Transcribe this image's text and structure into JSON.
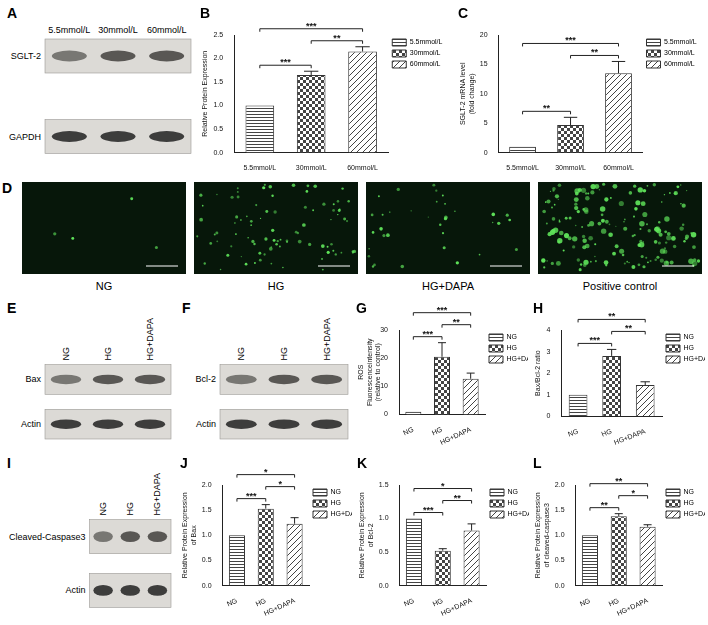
{
  "blots": [
    {
      "panel": "A",
      "lanes": [
        "5.5mmol/L",
        "30mmol/L",
        "60mmol/L"
      ],
      "bands": [
        "SGLT-2",
        "GAPDH"
      ]
    },
    {
      "panel": "E",
      "lanes": [
        "NG",
        "HG",
        "HG+DAPA"
      ],
      "bands": [
        "Bax",
        "Actin"
      ]
    },
    {
      "panel": "F",
      "lanes": [
        "NG",
        "HG",
        "HG+DAPA"
      ],
      "bands": [
        "Bcl-2",
        "Actin"
      ]
    },
    {
      "panel": "I",
      "lanes": [
        "NG",
        "HG",
        "HG+DAPA"
      ],
      "bands": [
        "Cleaved-Caspase3",
        "Actin"
      ]
    }
  ],
  "images": {
    "panel": "D",
    "labels": [
      "NG",
      "HG",
      "HG+DAPA",
      "Positive control"
    ]
  },
  "chart_data": [
    {
      "panel": "B",
      "type": "bar",
      "categories": [
        "5.5mmol/L",
        "30mmol/L",
        "60mmol/L"
      ],
      "values": [
        1,
        1.65,
        2.15
      ],
      "errors": [
        null,
        0.08,
        0.1
      ],
      "y_label": [
        "Relative Protein Expression"
      ],
      "ylim": [
        0,
        2.5
      ],
      "yticks": [
        {
          "value": 0,
          "label": "0.0"
        },
        {
          "value": 0.5,
          "label": "0.5"
        },
        {
          "value": 1,
          "label": "1.0"
        },
        {
          "value": 1.5,
          "label": "1.5"
        },
        {
          "value": 2,
          "label": "2.0"
        },
        {
          "value": 2.5,
          "label": "2.5"
        }
      ],
      "grid": false,
      "legend": "right",
      "significance": [
        {
          "from": 0,
          "to": 1,
          "label": "***"
        },
        {
          "from": 0,
          "to": 2,
          "label": "***"
        },
        {
          "from": 1,
          "to": 2,
          "label": "**"
        }
      ]
    },
    {
      "panel": "C",
      "type": "bar",
      "categories": [
        "5.5mmol/L",
        "30mmol/L",
        "60mmol/L"
      ],
      "values": [
        1,
        4.7,
        13.5
      ],
      "errors": [
        null,
        1.3,
        2
      ],
      "y_label": [
        "SGLT-2 mRNA level",
        "(fold change)"
      ],
      "ylim": [
        0,
        20
      ],
      "yticks": [
        0,
        5,
        10,
        15,
        20
      ],
      "grid": false,
      "legend": "right",
      "significance": [
        {
          "from": 0,
          "to": 1,
          "label": "**"
        },
        {
          "from": 0,
          "to": 2,
          "label": "***"
        },
        {
          "from": 1,
          "to": 2,
          "label": "**"
        }
      ]
    },
    {
      "panel": "G",
      "type": "bar",
      "categories": [
        "NG",
        "HG",
        "HG+DAPA"
      ],
      "values": [
        1,
        20.5,
        12.7
      ],
      "errors": [
        null,
        5,
        2
      ],
      "y_label": [
        "ROS",
        "Fluorescenceintensity",
        "(relative to control)"
      ],
      "ylim": [
        0,
        30
      ],
      "yticks": [
        0,
        10,
        20,
        30
      ],
      "grid": false,
      "legend": "right",
      "significance": [
        {
          "from": 0,
          "to": 2,
          "label": "***"
        },
        {
          "from": 0,
          "to": 1,
          "label": "***"
        },
        {
          "from": 1,
          "to": 2,
          "label": "**"
        }
      ]
    },
    {
      "panel": "H",
      "type": "bar",
      "categories": [
        "NG",
        "HG",
        "HG+DAPA"
      ],
      "values": [
        1,
        2.8,
        1.45
      ],
      "errors": [
        null,
        0.3,
        0.15
      ],
      "y_label": [
        "Bax/Bcl-2 ratio"
      ],
      "ylim": [
        0,
        4
      ],
      "yticks": [
        0,
        1,
        2,
        3,
        4
      ],
      "grid": false,
      "legend": "right",
      "significance": [
        {
          "from": 0,
          "to": 2,
          "label": "**"
        },
        {
          "from": 0,
          "to": 1,
          "label": "***"
        },
        {
          "from": 1,
          "to": 2,
          "label": "**"
        }
      ]
    },
    {
      "panel": "J",
      "type": "bar",
      "categories": [
        "NG",
        "HG",
        "HG+DAPA"
      ],
      "values": [
        1,
        1.53,
        1.23
      ],
      "errors": [
        null,
        0.08,
        0.12
      ],
      "y_label": [
        "Relative Protein Expression",
        "of Bax"
      ],
      "ylim": [
        0,
        2
      ],
      "yticks": [
        {
          "value": 0,
          "label": "0.0"
        },
        {
          "value": 0.5,
          "label": "0.5"
        },
        {
          "value": 1,
          "label": "1.0"
        },
        {
          "value": 1.5,
          "label": "1.5"
        },
        {
          "value": 2,
          "label": "2.0"
        }
      ],
      "grid": false,
      "legend": "right",
      "significance": [
        {
          "from": 0,
          "to": 2,
          "label": "*"
        },
        {
          "from": 0,
          "to": 1,
          "label": "***"
        },
        {
          "from": 1,
          "to": 2,
          "label": "*"
        }
      ]
    },
    {
      "panel": "K",
      "type": "bar",
      "categories": [
        "NG",
        "HG",
        "HG+DAPA"
      ],
      "values": [
        1,
        0.52,
        0.82
      ],
      "errors": [
        null,
        0.03,
        0.1
      ],
      "y_label": [
        "Relative Protein Expression",
        "of Bcl-2"
      ],
      "ylim": [
        0,
        1.5
      ],
      "yticks": [
        {
          "value": 0,
          "label": "0.0"
        },
        {
          "value": 0.5,
          "label": "0.5"
        },
        {
          "value": 1,
          "label": "1.0"
        },
        {
          "value": 1.5,
          "label": "1.5"
        }
      ],
      "grid": false,
      "legend": "right",
      "significance": [
        {
          "from": 0,
          "to": 2,
          "label": "*"
        },
        {
          "from": 0,
          "to": 1,
          "label": "***"
        },
        {
          "from": 1,
          "to": 2,
          "label": "**"
        }
      ]
    },
    {
      "panel": "L",
      "type": "bar",
      "categories": [
        "NG",
        "HG",
        "HG+DAPA"
      ],
      "values": [
        1,
        1.38,
        1.17
      ],
      "errors": [
        null,
        0.05,
        0.04
      ],
      "y_label": [
        "Relative Protein Expression",
        "of cleaved-caspase3"
      ],
      "ylim": [
        0,
        2
      ],
      "yticks": [
        {
          "value": 0,
          "label": "0.0"
        },
        {
          "value": 0.5,
          "label": "0.5"
        },
        {
          "value": 1,
          "label": "1.0"
        },
        {
          "value": 1.5,
          "label": "1.5"
        },
        {
          "value": 2,
          "label": "2.0"
        }
      ],
      "grid": false,
      "legend": "right",
      "significance": [
        {
          "from": 0,
          "to": 2,
          "label": "**"
        },
        {
          "from": 0,
          "to": 1,
          "label": "**"
        },
        {
          "from": 1,
          "to": 2,
          "label": "*"
        }
      ]
    }
  ]
}
